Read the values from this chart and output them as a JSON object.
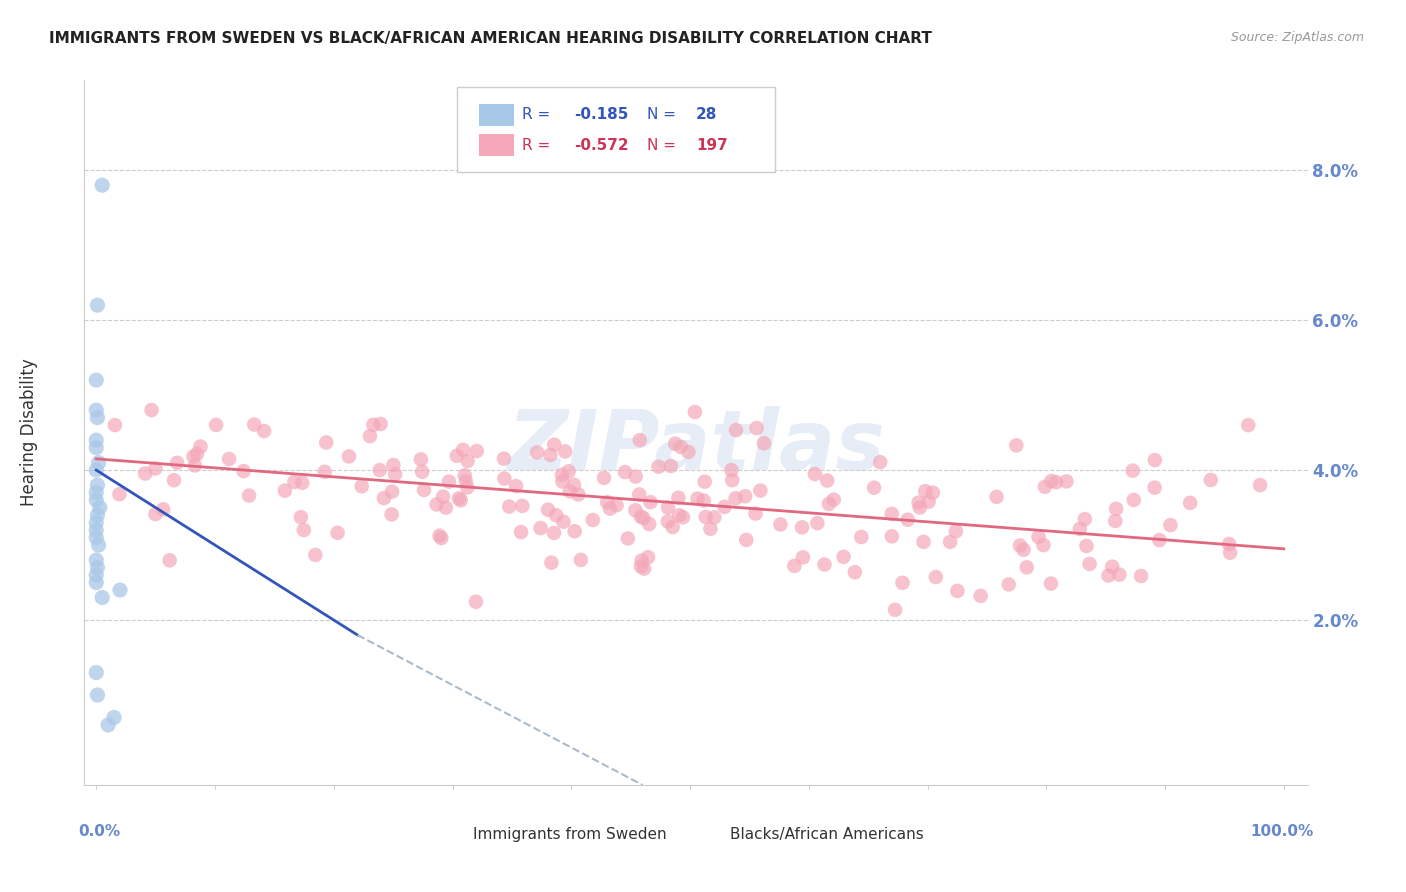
{
  "title": "IMMIGRANTS FROM SWEDEN VS BLACK/AFRICAN AMERICAN HEARING DISABILITY CORRELATION CHART",
  "source": "Source: ZipAtlas.com",
  "ylabel": "Hearing Disability",
  "legend_sweden": {
    "R": -0.185,
    "N": 28
  },
  "legend_black": {
    "R": -0.572,
    "N": 197
  },
  "watermark": "ZIPatlas",
  "background_color": "#ffffff",
  "grid_color": "#cccccc",
  "ytick_color": "#6688cc",
  "ytick_labels": [
    "2.0%",
    "4.0%",
    "6.0%",
    "8.0%"
  ],
  "ytick_values": [
    0.02,
    0.04,
    0.06,
    0.08
  ],
  "xlim": [
    0.0,
    1.0
  ],
  "ylim": [
    0.0,
    0.09
  ],
  "sweden_color": "#a8c8e8",
  "black_color": "#f4a8b8",
  "sweden_line_color": "#3355bb",
  "black_line_color": "#e06880",
  "dashed_line_color": "#aabbcc",
  "title_fontsize": 11,
  "source_fontsize": 9,
  "watermark_color": "#c8d8ee",
  "watermark_alpha": 0.45,
  "legend_label_color": "#3355bb",
  "legend_label_color2": "#cc3355"
}
